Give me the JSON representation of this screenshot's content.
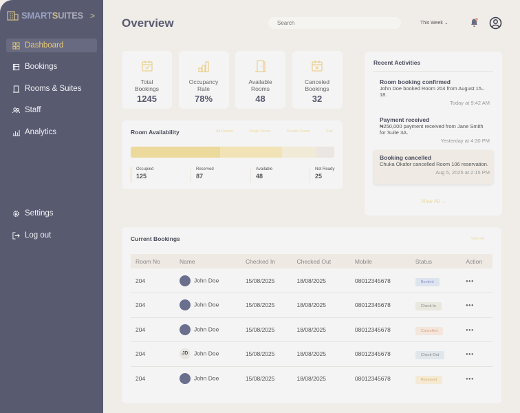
{
  "brand": {
    "part1": "SMART",
    "part2": "S",
    "part3": "UITES"
  },
  "sidebar": {
    "items": [
      {
        "label": "Dashboard"
      },
      {
        "label": "Bookings"
      },
      {
        "label": "Rooms & Suites"
      },
      {
        "label": "Staff"
      },
      {
        "label": "Analytics"
      }
    ],
    "settings": "Settings",
    "logout": "Log out"
  },
  "header": {
    "title": "Overview",
    "search_placeholder": "Search",
    "period": "This Week"
  },
  "stats": [
    {
      "label1": "Total",
      "label2": "Bookings",
      "value": "1245"
    },
    {
      "label1": "Occupancy",
      "label2": "Rate",
      "value": "78%"
    },
    {
      "label1": "Available",
      "label2": "Rooms",
      "value": "48"
    },
    {
      "label1": "Canceled",
      "label2": "Bookings",
      "value": "32"
    }
  ],
  "availability": {
    "title": "Room Availability",
    "tabs": [
      "All Rooms",
      "Single Room",
      "Double Room",
      "Suit"
    ],
    "segments": [
      {
        "label": "Occupied",
        "value": 125,
        "color": "#ecd99c"
      },
      {
        "label": "Reserved",
        "value": 87,
        "color": "#f1e3b5"
      },
      {
        "label": "Available",
        "value": 48,
        "color": "#f1ead6"
      },
      {
        "label": "Not Ready",
        "value": 25,
        "color": "#ebe6e1"
      }
    ]
  },
  "activities": {
    "title": "Recent Activities",
    "items": [
      {
        "title": "Room booking confirmed",
        "desc": "John Doe booked Room 204 from August 15–18.",
        "time": "Today at 9:42 AM"
      },
      {
        "title": "Payment received",
        "desc": "₦250,000 payment received from Jane Smith for Suite 3A.",
        "time": "Yesterday at 4:30 PM"
      },
      {
        "title": "Booking cancelled",
        "desc": "Chuka Okafor cancelled Room 106 reservation.",
        "time": "Aug 5, 2025 at 2:15 PM"
      }
    ],
    "view_all": "View All"
  },
  "bookings": {
    "title": "Current Bookings",
    "view_all": "View All",
    "columns": [
      "Room No",
      "Name",
      "Checked In",
      "Checked Out",
      "Mobile",
      "Status",
      "Action"
    ],
    "rows": [
      {
        "room": "204",
        "name": "John Doe",
        "in": "15/08/2025",
        "out": "18/08/2025",
        "mobile": "08012345678",
        "status": "Booked",
        "initials": ""
      },
      {
        "room": "204",
        "name": "John Doe",
        "in": "15/08/2025",
        "out": "18/08/2025",
        "mobile": "08012345678",
        "status": "Check-In",
        "initials": ""
      },
      {
        "room": "204",
        "name": "John Doe",
        "in": "15/08/2025",
        "out": "18/08/2025",
        "mobile": "08012345678",
        "status": "Cancelled",
        "initials": ""
      },
      {
        "room": "204",
        "name": "John Doe",
        "in": "15/08/2025",
        "out": "18/08/2025",
        "mobile": "08012345678",
        "status": "Check-Out",
        "initials": "JD"
      },
      {
        "room": "204",
        "name": "John Doe",
        "in": "15/08/2025",
        "out": "18/08/2025",
        "mobile": "08012345678",
        "status": "Reserved",
        "initials": ""
      }
    ],
    "action": "•••"
  },
  "status_colors": {
    "Booked": [
      "#dde4ee",
      "#8a90c8"
    ],
    "Check-In": [
      "#e8e8de",
      "#888"
    ],
    "Cancelled": [
      "#f3e6dc",
      "#d9a080"
    ],
    "Check-Out": [
      "#dfe6ec",
      "#888"
    ],
    "Reserved": [
      "#f5ead4",
      "#d9b070"
    ]
  }
}
